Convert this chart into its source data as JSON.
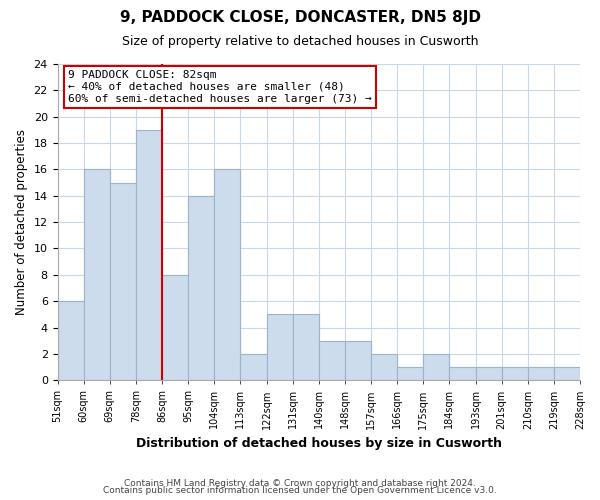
{
  "title1": "9, PADDOCK CLOSE, DONCASTER, DN5 8JD",
  "title2": "Size of property relative to detached houses in Cusworth",
  "xlabel": "Distribution of detached houses by size in Cusworth",
  "ylabel": "Number of detached properties",
  "footer1": "Contains HM Land Registry data © Crown copyright and database right 2024.",
  "footer2": "Contains public sector information licensed under the Open Government Licence v3.0.",
  "bin_labels": [
    "51sqm",
    "60sqm",
    "69sqm",
    "78sqm",
    "86sqm",
    "95sqm",
    "104sqm",
    "113sqm",
    "122sqm",
    "131sqm",
    "140sqm",
    "148sqm",
    "157sqm",
    "166sqm",
    "175sqm",
    "184sqm",
    "193sqm",
    "201sqm",
    "210sqm",
    "219sqm",
    "228sqm"
  ],
  "bar_heights": [
    6,
    16,
    15,
    19,
    8,
    14,
    16,
    2,
    5,
    5,
    3,
    3,
    2,
    1,
    2,
    1,
    1,
    1,
    1,
    1
  ],
  "bar_color": "#ccdcec",
  "bar_edge_color": "#9ab4cc",
  "red_line_x": 3.5,
  "annotation_title": "9 PADDOCK CLOSE: 82sqm",
  "annotation_line1": "← 40% of detached houses are smaller (48)",
  "annotation_line2": "60% of semi-detached houses are larger (73) →",
  "annotation_box_color": "white",
  "annotation_box_edge": "#cc0000",
  "red_line_color": "#cc0000",
  "ylim": [
    0,
    24
  ],
  "yticks": [
    0,
    2,
    4,
    6,
    8,
    10,
    12,
    14,
    16,
    18,
    20,
    22,
    24
  ],
  "grid_color": "#c8d8e8",
  "background_color": "#ffffff",
  "fig_background_color": "#ffffff"
}
